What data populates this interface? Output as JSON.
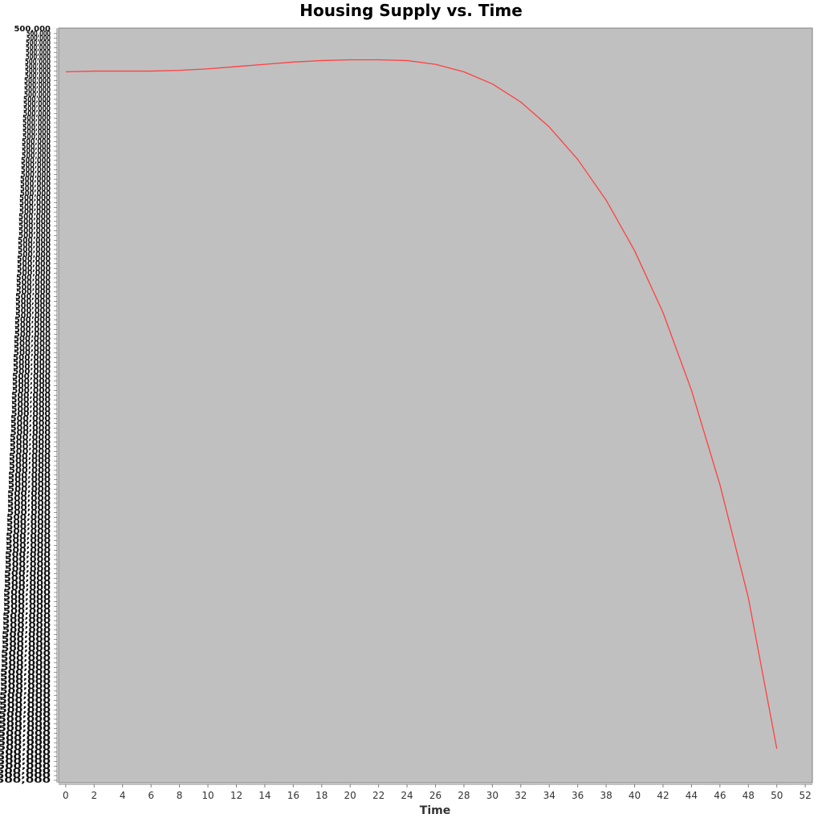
{
  "chart_data": {
    "type": "line",
    "title": "Housing Supply vs. Time",
    "xlabel": "Time",
    "ylabel": "",
    "xlim": [
      -0.5,
      52.5
    ],
    "x_ticks": [
      0,
      2,
      4,
      6,
      8,
      10,
      12,
      14,
      16,
      18,
      20,
      22,
      24,
      26,
      28,
      30,
      32,
      34,
      36,
      38,
      40,
      42,
      44,
      46,
      48,
      50,
      52
    ],
    "y_ticks_note": "Y-axis tick labels are heavily overprinted and illegible; the top-most label reads 500,000.",
    "y_top_label": "500,000",
    "grid": false,
    "background": "#c0c0c0",
    "line_color": "#ff4040",
    "series": [
      {
        "x": [
          0,
          2,
          4,
          6,
          8,
          10,
          12,
          14,
          16,
          18,
          20,
          22,
          24,
          26,
          28,
          30,
          32,
          34,
          36,
          38,
          40,
          42,
          44,
          46,
          48,
          50
        ],
        "y_fraction_of_plot_height": [
          0.942,
          0.943,
          0.943,
          0.943,
          0.944,
          0.946,
          0.949,
          0.952,
          0.955,
          0.957,
          0.958,
          0.958,
          0.957,
          0.952,
          0.942,
          0.926,
          0.902,
          0.869,
          0.826,
          0.772,
          0.705,
          0.623,
          0.52,
          0.395,
          0.245,
          0.045
        ]
      }
    ]
  }
}
